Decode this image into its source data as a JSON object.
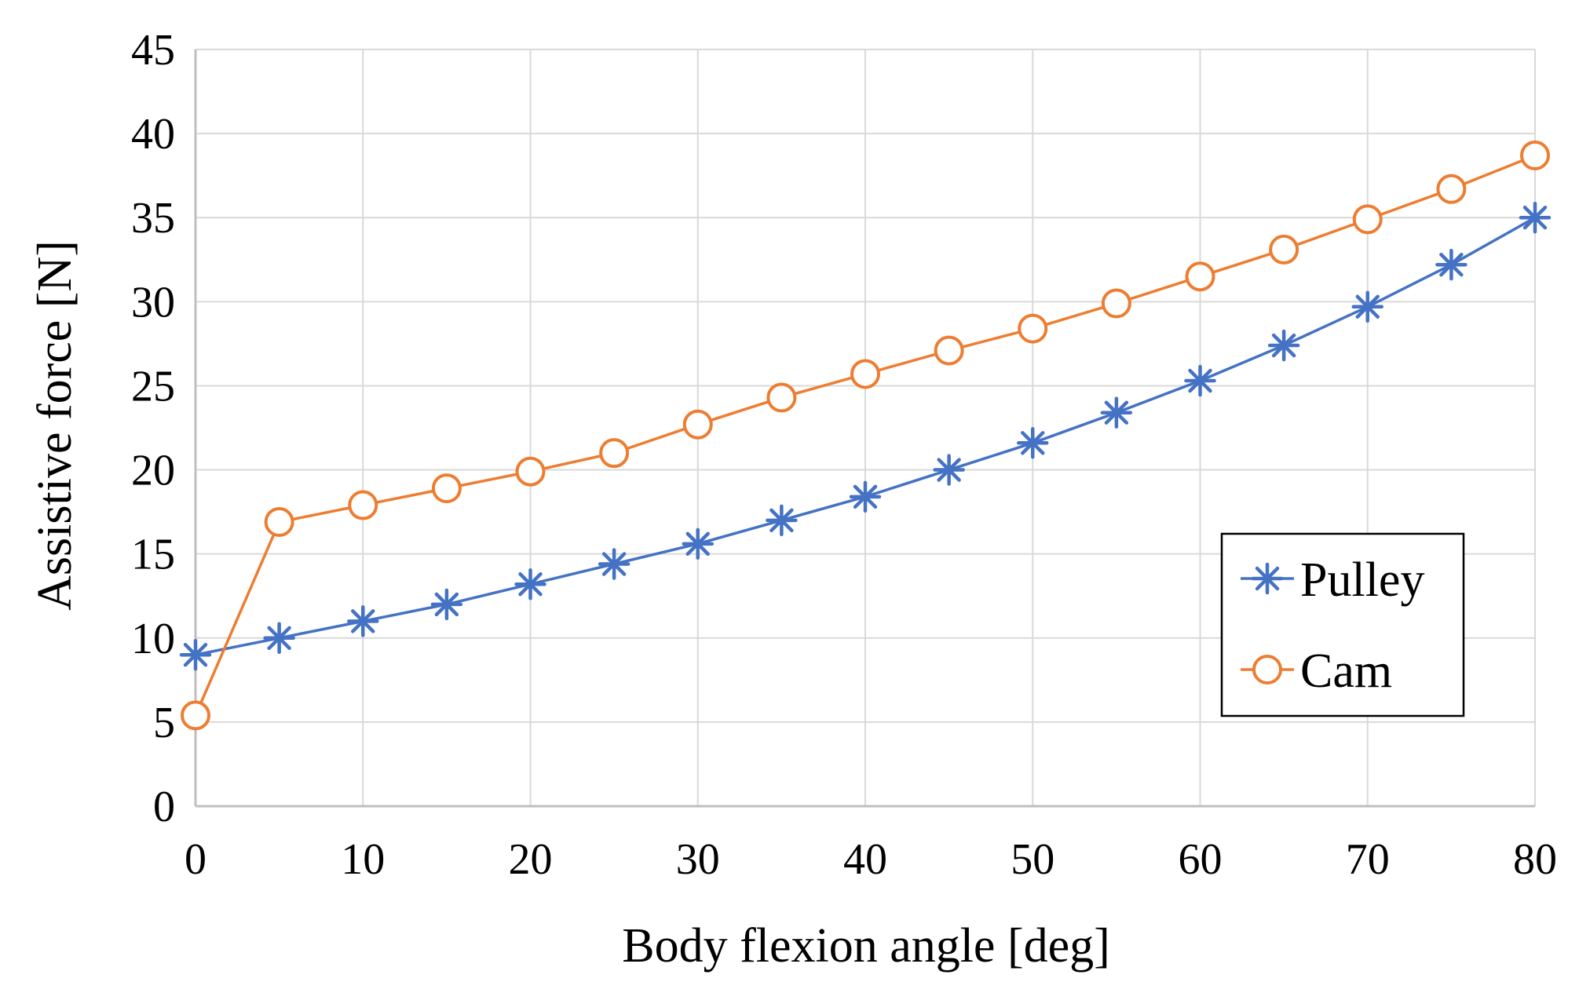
{
  "colors": {
    "pulley": "#4472c4",
    "cam": "#ed7d31",
    "grid": "#d9d9d9",
    "axis": "#bfbfbf"
  },
  "legend": {
    "pulley_label": "Pulley",
    "cam_label": "Cam",
    "placement": "right"
  },
  "chart_data": {
    "type": "line",
    "title": "",
    "xlabel": "Body flexion angle [deg]",
    "ylabel": "Assistive force [N]",
    "x": [
      0,
      5,
      10,
      15,
      20,
      25,
      30,
      35,
      40,
      45,
      50,
      55,
      60,
      65,
      70,
      75,
      80
    ],
    "xlim": [
      0,
      80
    ],
    "ylim": [
      0,
      45
    ],
    "xticks": [
      0,
      10,
      20,
      30,
      40,
      50,
      60,
      70,
      80
    ],
    "yticks": [
      0,
      5,
      10,
      15,
      20,
      25,
      30,
      35,
      40,
      45
    ],
    "grid": true,
    "series": [
      {
        "name": "Pulley",
        "marker": "asterisk",
        "values": [
          9.0,
          10.0,
          11.0,
          12.0,
          13.2,
          14.4,
          15.6,
          17.0,
          18.4,
          20.0,
          21.6,
          23.4,
          25.3,
          27.4,
          29.7,
          32.2,
          35.0
        ]
      },
      {
        "name": "Cam",
        "marker": "circle",
        "values": [
          5.4,
          16.9,
          17.9,
          18.9,
          19.9,
          21.0,
          22.7,
          24.3,
          25.7,
          27.1,
          28.4,
          29.9,
          31.5,
          33.1,
          34.9,
          36.7,
          38.7
        ]
      }
    ]
  }
}
